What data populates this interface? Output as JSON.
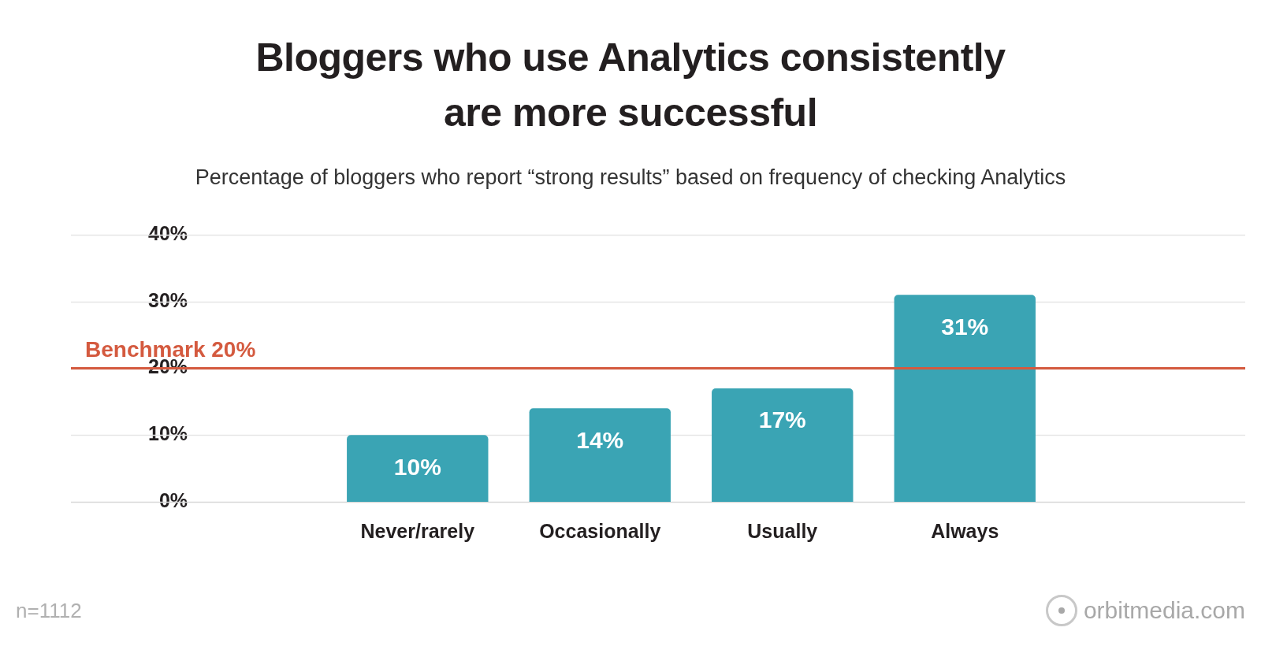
{
  "chart_data": {
    "type": "bar",
    "title": "Bloggers who use Analytics consistently\nare more successful",
    "subtitle": "Percentage of bloggers who report “strong results” based on frequency of checking Analytics",
    "categories": [
      "Never/rarely",
      "Occasionally",
      "Usually",
      "Always"
    ],
    "values": [
      10,
      14,
      17,
      31
    ],
    "value_labels": [
      "10%",
      "14%",
      "17%",
      "31%"
    ],
    "data_labels": true,
    "color": "#3aa4b4",
    "ylim": [
      0,
      40
    ],
    "yticks": [
      {
        "value": 0,
        "label": "0%"
      },
      {
        "value": 10,
        "label": "10%"
      },
      {
        "value": 20,
        "label": "20%"
      },
      {
        "value": 30,
        "label": "30%"
      },
      {
        "value": 40,
        "label": "40%"
      }
    ],
    "grid": true,
    "annotations": [
      {
        "y": 20,
        "label": "Benchmark 20%",
        "color": "#d45a3f"
      }
    ],
    "note": "n=1112",
    "source": "orbitmedia.com"
  }
}
